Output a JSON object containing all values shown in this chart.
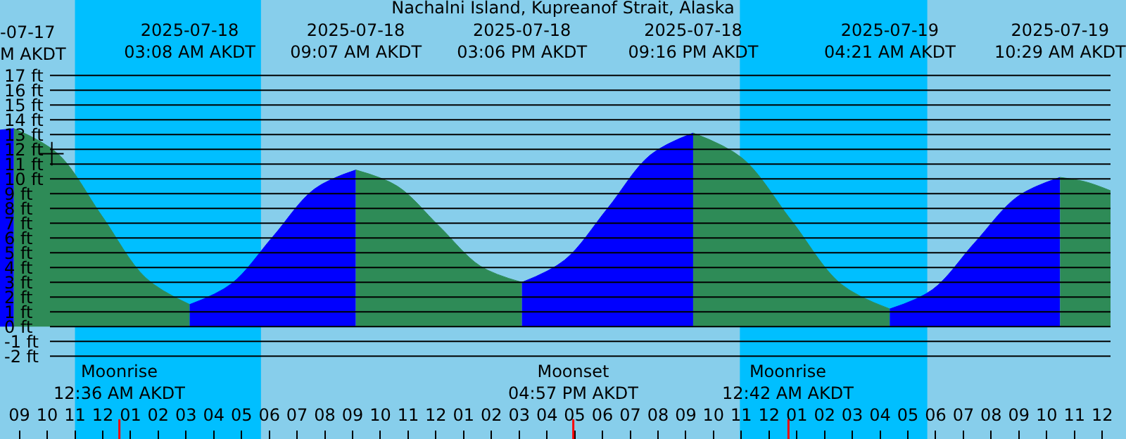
{
  "chart_data": {
    "type": "area",
    "title": "Nachalni Island, Kupreanof Strait, Alaska",
    "xlim": [
      "2025-07-17T20:18",
      "2025-07-19T12:18"
    ],
    "ylim": [
      -7.6,
      22.1
    ],
    "xticks": [
      {
        "value": "2025-07-17T21:00",
        "label": "09"
      },
      {
        "value": "2025-07-17T22:00",
        "label": "10"
      },
      {
        "value": "2025-07-17T23:00",
        "label": "11"
      },
      {
        "value": "2025-07-18T00:00",
        "label": "12"
      },
      {
        "value": "2025-07-18T01:00",
        "label": "01"
      },
      {
        "value": "2025-07-18T02:00",
        "label": "02"
      },
      {
        "value": "2025-07-18T03:00",
        "label": "03"
      },
      {
        "value": "2025-07-18T04:00",
        "label": "04"
      },
      {
        "value": "2025-07-18T05:00",
        "label": "05"
      },
      {
        "value": "2025-07-18T06:00",
        "label": "06"
      },
      {
        "value": "2025-07-18T07:00",
        "label": "07"
      },
      {
        "value": "2025-07-18T08:00",
        "label": "08"
      },
      {
        "value": "2025-07-18T09:00",
        "label": "09"
      },
      {
        "value": "2025-07-18T10:00",
        "label": "10"
      },
      {
        "value": "2025-07-18T11:00",
        "label": "11"
      },
      {
        "value": "2025-07-18T12:00",
        "label": "12"
      },
      {
        "value": "2025-07-18T13:00",
        "label": "01"
      },
      {
        "value": "2025-07-18T14:00",
        "label": "02"
      },
      {
        "value": "2025-07-18T15:00",
        "label": "03"
      },
      {
        "value": "2025-07-18T16:00",
        "label": "04"
      },
      {
        "value": "2025-07-18T17:00",
        "label": "05"
      },
      {
        "value": "2025-07-18T18:00",
        "label": "06"
      },
      {
        "value": "2025-07-18T19:00",
        "label": "07"
      },
      {
        "value": "2025-07-18T20:00",
        "label": "08"
      },
      {
        "value": "2025-07-18T21:00",
        "label": "09"
      },
      {
        "value": "2025-07-18T22:00",
        "label": "10"
      },
      {
        "value": "2025-07-18T23:00",
        "label": "11"
      },
      {
        "value": "2025-07-19T00:00",
        "label": "12"
      },
      {
        "value": "2025-07-19T01:00",
        "label": "01"
      },
      {
        "value": "2025-07-19T02:00",
        "label": "02"
      },
      {
        "value": "2025-07-19T03:00",
        "label": "03"
      },
      {
        "value": "2025-07-19T04:00",
        "label": "04"
      },
      {
        "value": "2025-07-19T05:00",
        "label": "05"
      },
      {
        "value": "2025-07-19T06:00",
        "label": "06"
      },
      {
        "value": "2025-07-19T07:00",
        "label": "07"
      },
      {
        "value": "2025-07-19T08:00",
        "label": "08"
      },
      {
        "value": "2025-07-19T09:00",
        "label": "09"
      },
      {
        "value": "2025-07-19T10:00",
        "label": "10"
      },
      {
        "value": "2025-07-19T11:00",
        "label": "11"
      },
      {
        "value": "2025-07-19T12:00",
        "label": "12"
      }
    ],
    "x2lim": [
      "2025-07-17T20:18",
      "2025-07-19T12:18"
    ],
    "x2ticks": [
      {
        "value": "2025-07-18T03:08",
        "label": "2025-07-18\n03:08 AM AKDT"
      },
      {
        "value": "2025-07-18T09:07",
        "label": "2025-07-18\n09:07 AM AKDT"
      },
      {
        "value": "2025-07-18T15:06",
        "label": "2025-07-18\n03:06 PM AKDT"
      },
      {
        "value": "2025-07-18T21:16",
        "label": "2025-07-18\n09:16 PM AKDT"
      },
      {
        "value": "2025-07-19T04:21",
        "label": "2025-07-19\n04:21 AM AKDT"
      },
      {
        "value": "2025-07-19T10:29",
        "label": "2025-07-19\n10:29 AM AKDT"
      }
    ],
    "yticks": [
      {
        "value": -2,
        "label": "-2 ft"
      },
      {
        "value": -1,
        "label": "-1 ft"
      },
      {
        "value": 0,
        "label": "0 ft"
      },
      {
        "value": 1,
        "label": "1 ft"
      },
      {
        "value": 2,
        "label": "2 ft"
      },
      {
        "value": 3,
        "label": "3 ft"
      },
      {
        "value": 4,
        "label": "4 ft"
      },
      {
        "value": 5,
        "label": "5 ft"
      },
      {
        "value": 6,
        "label": "6 ft"
      },
      {
        "value": 7,
        "label": "7 ft"
      },
      {
        "value": 8,
        "label": "8 ft"
      },
      {
        "value": 9,
        "label": "9 ft"
      },
      {
        "value": 10,
        "label": "10 ft"
      },
      {
        "value": 11,
        "label": "11 ft"
      },
      {
        "value": 12,
        "label": "12 ft"
      },
      {
        "value": 13,
        "label": "13 ft"
      },
      {
        "value": 14,
        "label": "14 ft"
      },
      {
        "value": 15,
        "label": "15 ft"
      },
      {
        "value": 16,
        "label": "16 ft"
      },
      {
        "value": 17,
        "label": "17 ft"
      }
    ],
    "grid": "y",
    "bands": [
      {
        "axis": "x",
        "from": "2025-07-17T23:00",
        "to": "2025-07-18T05:42",
        "color": "#00bfff"
      },
      {
        "axis": "x",
        "from": "2025-07-18T22:57",
        "to": "2025-07-19T05:42",
        "color": "#00bfff"
      }
    ],
    "ref_lines": [
      {
        "axis": "x",
        "value": "2025-07-18T00:36",
        "label": "Moonrise\n12:36 AM AKDT",
        "color": "#ff0000"
      },
      {
        "axis": "x",
        "value": "2025-07-18T16:57",
        "label": "Moonset\n04:57 PM AKDT",
        "color": "#ff0000"
      },
      {
        "axis": "x",
        "value": "2025-07-19T00:42",
        "label": "Moonrise\n12:42 AM AKDT",
        "color": "#ff0000"
      }
    ],
    "annotations": [
      "-07-17\nM AKDT"
    ],
    "series": [
      {
        "color": "#0000ff",
        "x": [
          "2025-07-17T20:18",
          "2025-07-17T20:48"
        ],
        "values": [
          13.3,
          13.4
        ]
      },
      {
        "color": "#2e8b57",
        "x": [
          "2025-07-17T20:48",
          "2025-07-17T22:23",
          "2025-07-17T23:58",
          "2025-07-18T01:33",
          "2025-07-18T03:08"
        ],
        "values": [
          13.4,
          11.7,
          7.5,
          3.3,
          1.5
        ]
      },
      {
        "color": "#0000ff",
        "x": [
          "2025-07-18T03:08",
          "2025-07-18T04:38",
          "2025-07-18T06:08",
          "2025-07-18T07:37",
          "2025-07-18T09:07"
        ],
        "values": [
          1.5,
          2.9,
          6.1,
          9.3,
          10.6
        ]
      },
      {
        "color": "#2e8b57",
        "x": [
          "2025-07-18T09:07",
          "2025-07-18T10:37",
          "2025-07-18T12:07",
          "2025-07-18T13:36",
          "2025-07-18T15:06"
        ],
        "values": [
          10.6,
          9.5,
          6.8,
          4.1,
          3.0
        ]
      },
      {
        "color": "#0000ff",
        "x": [
          "2025-07-18T15:06",
          "2025-07-18T16:38",
          "2025-07-18T18:11",
          "2025-07-18T19:43",
          "2025-07-18T21:16"
        ],
        "values": [
          3.0,
          4.5,
          8.0,
          11.6,
          13.1
        ]
      },
      {
        "color": "#2e8b57",
        "x": [
          "2025-07-18T21:16",
          "2025-07-18T23:02",
          "2025-07-19T00:48",
          "2025-07-19T02:35",
          "2025-07-19T04:21"
        ],
        "values": [
          13.1,
          11.4,
          7.2,
          2.9,
          1.2
        ]
      },
      {
        "color": "#0000ff",
        "x": [
          "2025-07-19T04:21",
          "2025-07-19T05:53",
          "2025-07-19T07:25",
          "2025-07-19T08:57",
          "2025-07-19T10:29"
        ],
        "values": [
          1.2,
          2.5,
          5.7,
          8.8,
          10.1
        ]
      },
      {
        "color": "#2e8b57",
        "x": [
          "2025-07-19T10:29",
          "2025-07-19T11:24",
          "2025-07-19T12:18"
        ],
        "values": [
          10.1,
          9.8,
          9.2
        ]
      },
      {
        "type": "scatter",
        "marker": "cross",
        "color": "#000000",
        "x": [
          "2025-07-17T22:10"
        ],
        "values": [
          11.7
        ]
      }
    ]
  }
}
